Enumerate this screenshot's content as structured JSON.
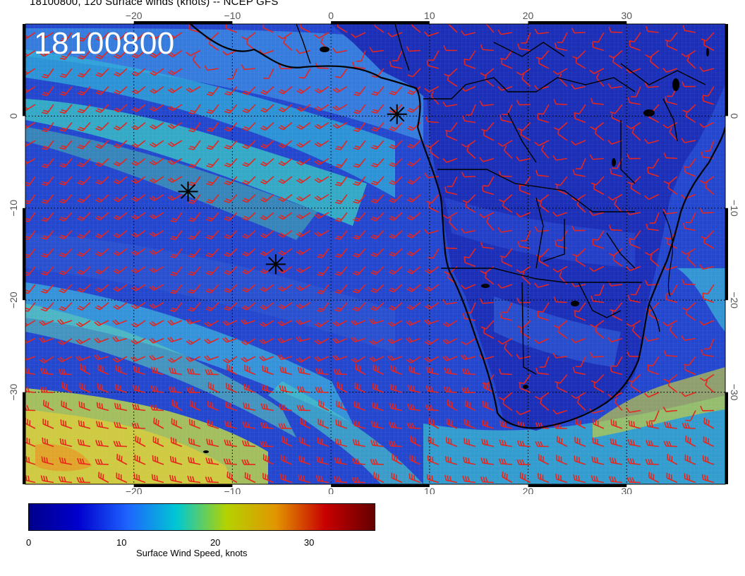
{
  "header": {
    "title": "18100800, 120 Surface winds (knots) -- NCEP GFS",
    "stamp": "18100800"
  },
  "map": {
    "lon_range": [
      -31,
      40
    ],
    "lat_range": [
      -40,
      10
    ],
    "lon_ticks": [
      {
        "value": -20,
        "label": "−20"
      },
      {
        "value": -10,
        "label": "−10"
      },
      {
        "value": 0,
        "label": "0"
      },
      {
        "value": 10,
        "label": "10"
      },
      {
        "value": 20,
        "label": "20"
      },
      {
        "value": 30,
        "label": "30"
      }
    ],
    "lat_ticks": [
      {
        "value": 0,
        "label": "0"
      },
      {
        "value": -10,
        "label": "−10"
      },
      {
        "value": -20,
        "label": "−20"
      },
      {
        "value": -30,
        "label": "−30"
      }
    ],
    "markers": [
      {
        "name": "asterisk-marker-1",
        "lon": -14.5,
        "lat": -8.2
      },
      {
        "name": "asterisk-marker-2",
        "lon": -5.6,
        "lat": -16.1
      },
      {
        "name": "asterisk-marker-3",
        "lon": 6.7,
        "lat": 0.2
      }
    ],
    "barb_color": "#e8251c",
    "coast_color": "#000000"
  },
  "colorbar": {
    "title": "Surface Wind Speed, knots",
    "range": [
      0,
      37
    ],
    "ticks": [
      {
        "value": 0,
        "label": "0"
      },
      {
        "value": 10,
        "label": "10"
      },
      {
        "value": 20,
        "label": "20"
      },
      {
        "value": 30,
        "label": "30"
      }
    ],
    "stops": [
      "#00008b",
      "#0000cd",
      "#1e64ff",
      "#00c8d2",
      "#b4d200",
      "#e19600",
      "#c80000",
      "#640000"
    ]
  }
}
